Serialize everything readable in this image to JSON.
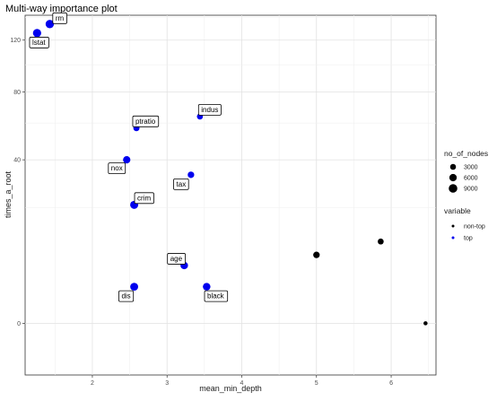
{
  "chart_data": {
    "type": "scatter",
    "title": "Multi-way importance plot",
    "xlabel": "mean_min_depth",
    "ylabel": "times_a_root",
    "xlim": [
      1.1,
      6.6
    ],
    "ylim": [
      -4,
      142
    ],
    "y_scale": "sqrt",
    "x_ticks": [
      "2",
      "3",
      "4",
      "5",
      "6"
    ],
    "x_tick_values": [
      2,
      3,
      4,
      5,
      6
    ],
    "y_ticks": [
      "0",
      "40",
      "80",
      "120"
    ],
    "y_tick_values": [
      0,
      40,
      80,
      120
    ],
    "grid": true,
    "legend_position": "right",
    "size_legend": {
      "title": "no_of_nodes",
      "entries": [
        {
          "label": "3000",
          "value": 3000
        },
        {
          "label": "6000",
          "value": 6000
        },
        {
          "label": "9000",
          "value": 9000
        }
      ]
    },
    "color_legend": {
      "title": "variable",
      "entries": [
        {
          "label": "non-top",
          "color": "#000000"
        },
        {
          "label": "top",
          "color": "#0000ee"
        }
      ]
    },
    "points": [
      {
        "label": "rm",
        "x": 1.43,
        "y": 134,
        "nodes": 8300,
        "variable": "top"
      },
      {
        "label": "lstat",
        "x": 1.26,
        "y": 126,
        "nodes": 8100,
        "variable": "top"
      },
      {
        "label": "indus",
        "x": 3.44,
        "y": 64,
        "nodes": 3300,
        "variable": "top"
      },
      {
        "label": "ptratio",
        "x": 2.59,
        "y": 57,
        "nodes": 3500,
        "variable": "top"
      },
      {
        "label": "nox",
        "x": 2.46,
        "y": 40,
        "nodes": 5800,
        "variable": "top"
      },
      {
        "label": "tax",
        "x": 3.32,
        "y": 33,
        "nodes": 4100,
        "variable": "top"
      },
      {
        "label": "crim",
        "x": 2.56,
        "y": 21,
        "nodes": 7600,
        "variable": "top"
      },
      {
        "label": "age",
        "x": 3.23,
        "y": 5,
        "nodes": 6300,
        "variable": "top"
      },
      {
        "label": "dis",
        "x": 2.56,
        "y": 2,
        "nodes": 7200,
        "variable": "top"
      },
      {
        "label": "black",
        "x": 3.53,
        "y": 2,
        "nodes": 6300,
        "variable": "top"
      },
      {
        "x": 5.86,
        "y": 10,
        "nodes": 3100,
        "variable": "non-top"
      },
      {
        "x": 5.0,
        "y": 7,
        "nodes": 4100,
        "variable": "non-top"
      },
      {
        "x": 6.46,
        "y": 0,
        "nodes": 800,
        "variable": "non-top"
      }
    ]
  }
}
